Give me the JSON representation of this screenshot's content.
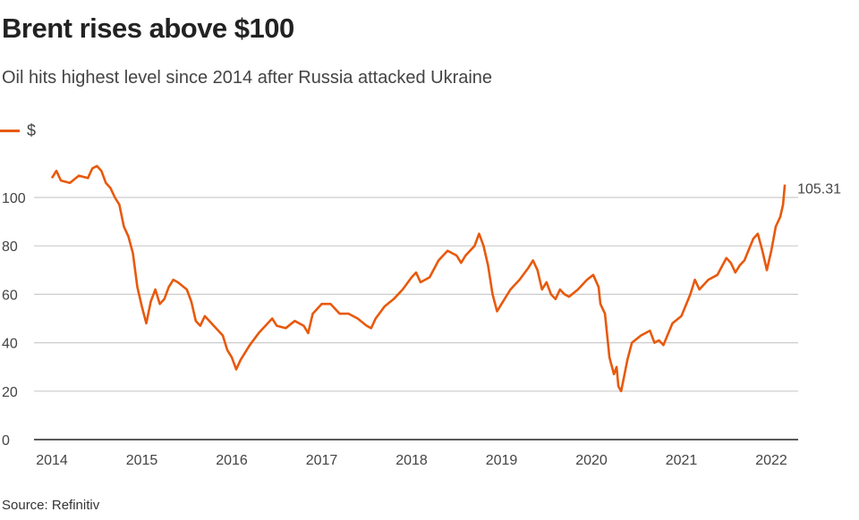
{
  "chart_data": {
    "type": "line",
    "title": "Brent rises above $100",
    "subtitle": "Oil hits highest level since 2014 after Russia attacked Ukraine",
    "xlabel": "",
    "ylabel": "",
    "legend": [
      {
        "name": "$",
        "color": "#e8590c"
      }
    ],
    "legend_placement": "top-left",
    "ylim": [
      0,
      115
    ],
    "xlim": [
      2013.8,
      2022.3
    ],
    "yticks": [
      0,
      20,
      40,
      60,
      80,
      100
    ],
    "xticks": [
      2014,
      2015,
      2016,
      2017,
      2018,
      2019,
      2020,
      2021,
      2022
    ],
    "grid": "horizontal",
    "annotation": "105.31",
    "source": "Source: Refinitiv",
    "series": [
      {
        "name": "$",
        "color": "#e8590c",
        "points": [
          [
            2014.0,
            108
          ],
          [
            2014.05,
            111
          ],
          [
            2014.1,
            107
          ],
          [
            2014.2,
            106
          ],
          [
            2014.3,
            109
          ],
          [
            2014.4,
            108
          ],
          [
            2014.45,
            112
          ],
          [
            2014.5,
            113
          ],
          [
            2014.55,
            111
          ],
          [
            2014.6,
            106
          ],
          [
            2014.65,
            104
          ],
          [
            2014.7,
            100
          ],
          [
            2014.75,
            97
          ],
          [
            2014.8,
            88
          ],
          [
            2014.85,
            84
          ],
          [
            2014.9,
            77
          ],
          [
            2014.95,
            63
          ],
          [
            2015.0,
            55
          ],
          [
            2015.05,
            48
          ],
          [
            2015.1,
            57
          ],
          [
            2015.15,
            62
          ],
          [
            2015.2,
            56
          ],
          [
            2015.25,
            58
          ],
          [
            2015.3,
            63
          ],
          [
            2015.35,
            66
          ],
          [
            2015.4,
            65
          ],
          [
            2015.5,
            62
          ],
          [
            2015.55,
            57
          ],
          [
            2015.6,
            49
          ],
          [
            2015.65,
            47
          ],
          [
            2015.7,
            51
          ],
          [
            2015.8,
            47
          ],
          [
            2015.9,
            43
          ],
          [
            2015.95,
            37
          ],
          [
            2016.0,
            34
          ],
          [
            2016.05,
            29
          ],
          [
            2016.1,
            33
          ],
          [
            2016.2,
            39
          ],
          [
            2016.3,
            44
          ],
          [
            2016.4,
            48
          ],
          [
            2016.45,
            50
          ],
          [
            2016.5,
            47
          ],
          [
            2016.6,
            46
          ],
          [
            2016.7,
            49
          ],
          [
            2016.8,
            47
          ],
          [
            2016.85,
            44
          ],
          [
            2016.9,
            52
          ],
          [
            2017.0,
            56
          ],
          [
            2017.1,
            56
          ],
          [
            2017.2,
            52
          ],
          [
            2017.3,
            52
          ],
          [
            2017.4,
            50
          ],
          [
            2017.5,
            47
          ],
          [
            2017.55,
            46
          ],
          [
            2017.6,
            50
          ],
          [
            2017.7,
            55
          ],
          [
            2017.8,
            58
          ],
          [
            2017.9,
            62
          ],
          [
            2018.0,
            67
          ],
          [
            2018.05,
            69
          ],
          [
            2018.1,
            65
          ],
          [
            2018.2,
            67
          ],
          [
            2018.3,
            74
          ],
          [
            2018.4,
            78
          ],
          [
            2018.5,
            76
          ],
          [
            2018.55,
            73
          ],
          [
            2018.6,
            76
          ],
          [
            2018.7,
            80
          ],
          [
            2018.75,
            85
          ],
          [
            2018.8,
            80
          ],
          [
            2018.85,
            72
          ],
          [
            2018.9,
            60
          ],
          [
            2018.95,
            53
          ],
          [
            2019.0,
            56
          ],
          [
            2019.1,
            62
          ],
          [
            2019.2,
            66
          ],
          [
            2019.3,
            71
          ],
          [
            2019.35,
            74
          ],
          [
            2019.4,
            70
          ],
          [
            2019.45,
            62
          ],
          [
            2019.5,
            65
          ],
          [
            2019.55,
            60
          ],
          [
            2019.6,
            58
          ],
          [
            2019.65,
            62
          ],
          [
            2019.7,
            60
          ],
          [
            2019.75,
            59
          ],
          [
            2019.85,
            62
          ],
          [
            2019.95,
            66
          ],
          [
            2020.02,
            68
          ],
          [
            2020.08,
            63
          ],
          [
            2020.1,
            56
          ],
          [
            2020.15,
            52
          ],
          [
            2020.2,
            34
          ],
          [
            2020.25,
            27
          ],
          [
            2020.28,
            30
          ],
          [
            2020.3,
            22
          ],
          [
            2020.33,
            20
          ],
          [
            2020.4,
            33
          ],
          [
            2020.45,
            40
          ],
          [
            2020.55,
            43
          ],
          [
            2020.65,
            45
          ],
          [
            2020.7,
            40
          ],
          [
            2020.75,
            41
          ],
          [
            2020.8,
            39
          ],
          [
            2020.9,
            48
          ],
          [
            2021.0,
            51
          ],
          [
            2021.1,
            60
          ],
          [
            2021.15,
            66
          ],
          [
            2021.2,
            62
          ],
          [
            2021.3,
            66
          ],
          [
            2021.4,
            68
          ],
          [
            2021.5,
            75
          ],
          [
            2021.55,
            73
          ],
          [
            2021.6,
            69
          ],
          [
            2021.65,
            72
          ],
          [
            2021.7,
            74
          ],
          [
            2021.8,
            83
          ],
          [
            2021.85,
            85
          ],
          [
            2021.9,
            78
          ],
          [
            2021.95,
            70
          ],
          [
            2022.0,
            78
          ],
          [
            2022.05,
            88
          ],
          [
            2022.1,
            92
          ],
          [
            2022.13,
            97
          ],
          [
            2022.15,
            105.31
          ]
        ]
      }
    ]
  }
}
